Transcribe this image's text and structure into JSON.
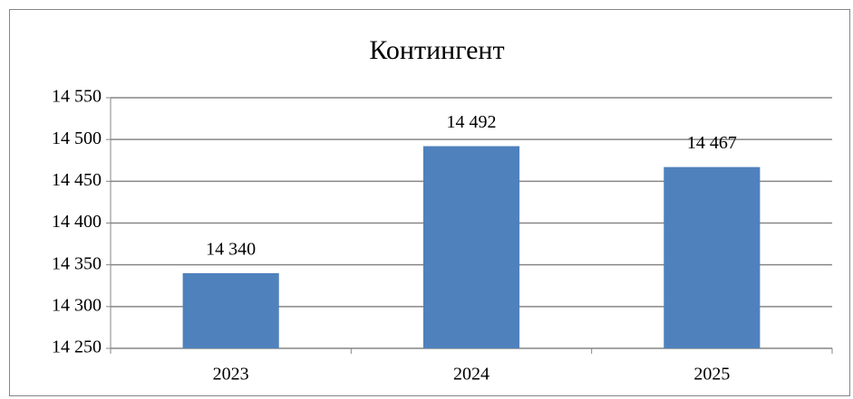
{
  "chart_data": {
    "type": "bar",
    "title": "Контингент",
    "categories": [
      "2023",
      "2024",
      "2025"
    ],
    "values": [
      14340,
      14492,
      14467
    ],
    "value_labels": [
      "14 340",
      "14 492",
      "14 467"
    ],
    "color": "#4f81bd",
    "ylim": [
      14250,
      14550
    ],
    "yticks": [
      {
        "value": 14250,
        "label": "14 250"
      },
      {
        "value": 14300,
        "label": "14 300"
      },
      {
        "value": 14350,
        "label": "14 350"
      },
      {
        "value": 14400,
        "label": "14 400"
      },
      {
        "value": 14450,
        "label": "14 450"
      },
      {
        "value": 14500,
        "label": "14 500"
      },
      {
        "value": 14550,
        "label": "14 550"
      }
    ],
    "grid": true
  }
}
